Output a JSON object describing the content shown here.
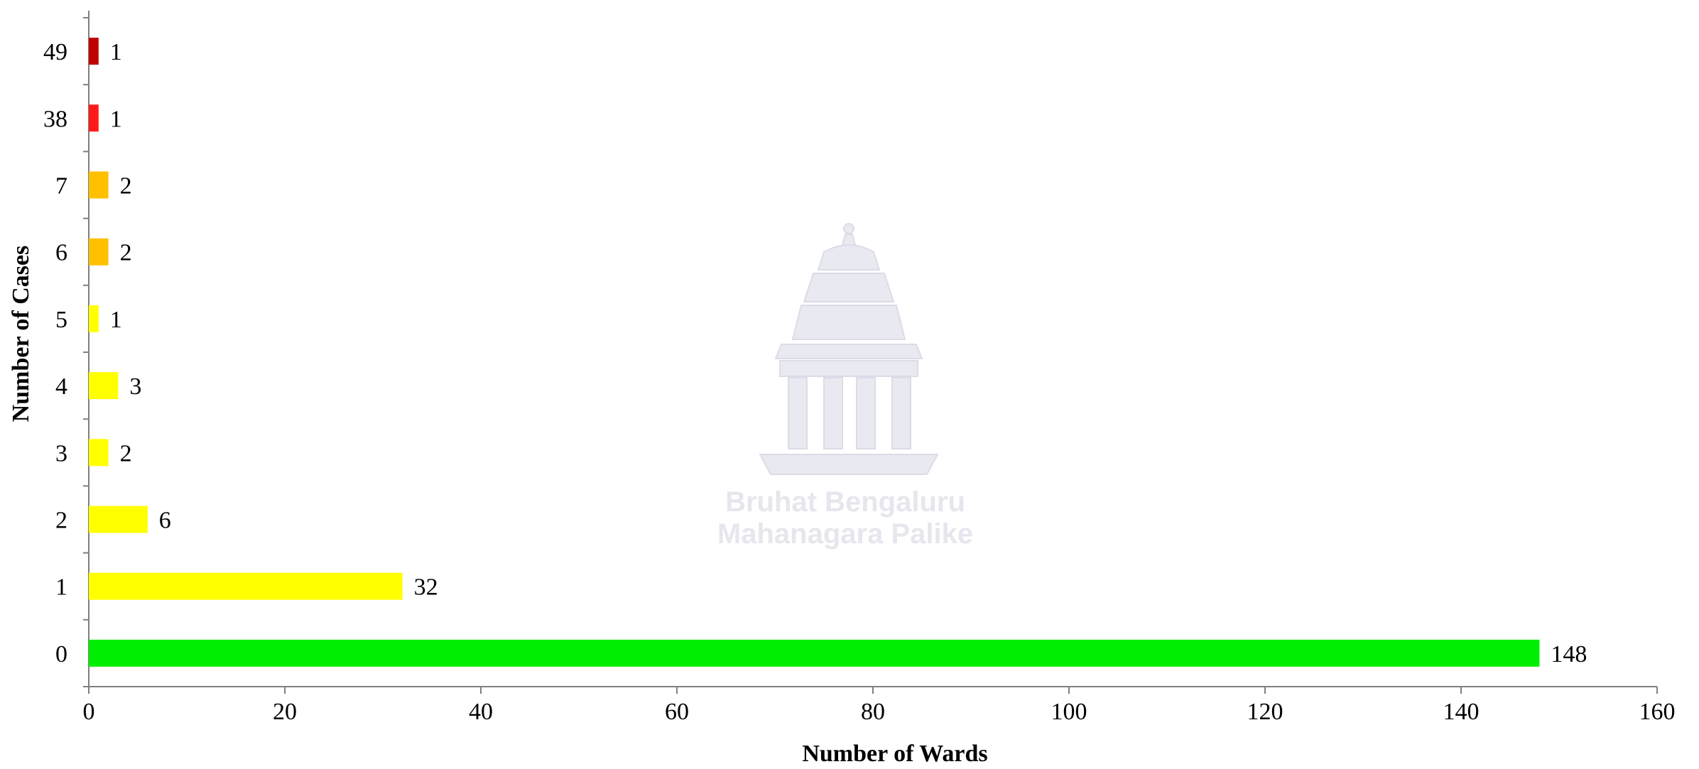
{
  "watermark": {
    "line1": "Bruhat Bengaluru",
    "line2": "Mahanagara Palike"
  },
  "chart_data": {
    "type": "bar",
    "orientation": "horizontal",
    "xlabel": "Number of Wards",
    "ylabel": "Number of Cases",
    "xlim": [
      0,
      160
    ],
    "x_ticks": [
      0,
      20,
      40,
      60,
      80,
      100,
      120,
      140,
      160
    ],
    "categories": [
      "0",
      "1",
      "2",
      "3",
      "4",
      "5",
      "6",
      "7",
      "38",
      "49"
    ],
    "values": [
      148,
      32,
      6,
      2,
      3,
      1,
      2,
      2,
      1,
      1
    ],
    "colors": [
      "#00ee00",
      "#ffff00",
      "#ffff00",
      "#ffff00",
      "#ffff00",
      "#ffff00",
      "#ffc000",
      "#ffc000",
      "#ff1a1a",
      "#c00000"
    ],
    "grid": false,
    "legend": "none"
  }
}
